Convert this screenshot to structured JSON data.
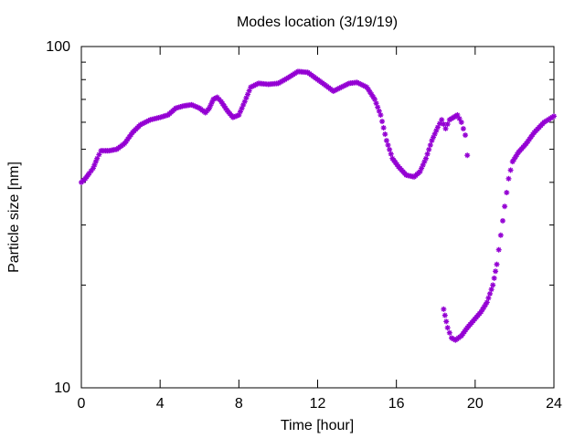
{
  "chart_data": {
    "type": "scatter",
    "title": "Modes location (3/19/19)",
    "xlabel": "Time [hour]",
    "ylabel": "Particle size [nm]",
    "xlim": [
      0,
      24
    ],
    "ylim": [
      10,
      100
    ],
    "yscale": "log",
    "x_ticks": [
      "0",
      "4",
      "8",
      "12",
      "16",
      "20",
      "24"
    ],
    "y_ticks": [
      "10",
      "100"
    ],
    "marker_color": "#9400d3",
    "grid": false,
    "series": [
      {
        "name": "",
        "points": [
          [
            0.0,
            40
          ],
          [
            0.2,
            41
          ],
          [
            0.4,
            42.5
          ],
          [
            0.6,
            44
          ],
          [
            0.8,
            47
          ],
          [
            1.0,
            49.5
          ],
          [
            1.4,
            49.5
          ],
          [
            1.8,
            50
          ],
          [
            2.2,
            52
          ],
          [
            2.6,
            56
          ],
          [
            3.0,
            59
          ],
          [
            3.5,
            61
          ],
          [
            4.0,
            62
          ],
          [
            4.4,
            63
          ],
          [
            4.8,
            66
          ],
          [
            5.2,
            67
          ],
          [
            5.6,
            67.5
          ],
          [
            6.0,
            66
          ],
          [
            6.3,
            64
          ],
          [
            6.5,
            66
          ],
          [
            6.7,
            70
          ],
          [
            6.9,
            71
          ],
          [
            7.1,
            69
          ],
          [
            7.4,
            65
          ],
          [
            7.7,
            62
          ],
          [
            8.0,
            63
          ],
          [
            8.3,
            69
          ],
          [
            8.6,
            76
          ],
          [
            9.0,
            78
          ],
          [
            9.5,
            77.5
          ],
          [
            10.0,
            78
          ],
          [
            10.5,
            81
          ],
          [
            11.0,
            84.5
          ],
          [
            11.5,
            84
          ],
          [
            12.0,
            80
          ],
          [
            12.4,
            77
          ],
          [
            12.8,
            74
          ],
          [
            13.2,
            76
          ],
          [
            13.6,
            78
          ],
          [
            14.0,
            78.5
          ],
          [
            14.5,
            76
          ],
          [
            14.9,
            70
          ],
          [
            15.2,
            63
          ],
          [
            15.5,
            53
          ],
          [
            15.8,
            47
          ],
          [
            16.1,
            44.5
          ],
          [
            16.5,
            42
          ],
          [
            16.9,
            41.5
          ],
          [
            17.2,
            43
          ],
          [
            17.5,
            47
          ],
          [
            17.8,
            53
          ],
          [
            18.1,
            58
          ],
          [
            18.3,
            61
          ],
          [
            18.5,
            57.5
          ],
          [
            18.7,
            61
          ],
          [
            18.9,
            62
          ],
          [
            19.1,
            63
          ],
          [
            19.3,
            60
          ],
          [
            19.5,
            55
          ],
          [
            19.6,
            48
          ],
          [
            18.4,
            17
          ],
          [
            18.6,
            15
          ],
          [
            18.8,
            14
          ],
          [
            19.0,
            13.8
          ],
          [
            19.3,
            14.2
          ],
          [
            19.6,
            15
          ],
          [
            19.9,
            15.7
          ],
          [
            20.3,
            16.7
          ],
          [
            20.6,
            17.8
          ],
          [
            20.9,
            20
          ],
          [
            21.1,
            23
          ],
          [
            21.3,
            28
          ],
          [
            21.5,
            34
          ],
          [
            21.7,
            41
          ],
          [
            21.9,
            46
          ],
          [
            22.2,
            49
          ],
          [
            22.6,
            52
          ],
          [
            23.0,
            56
          ],
          [
            23.5,
            60
          ],
          [
            24.0,
            62.5
          ]
        ]
      }
    ]
  }
}
